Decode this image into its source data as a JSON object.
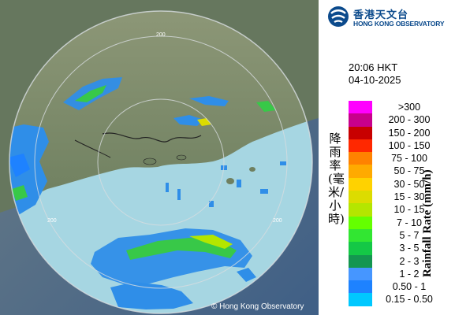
{
  "branding": {
    "name_zh": "香港天文台",
    "name_en": "HONG KONG OBSERVATORY",
    "copyright": "© Hong Kong Observatory"
  },
  "observation": {
    "time": "20:06 HKT",
    "date": "04-10-2025"
  },
  "legend": {
    "title_zh": "降雨率(毫米/小時)",
    "title_en": "Rainfall Rate (mm/h)",
    "items": [
      {
        "label": ">300",
        "color": "#ff00ff"
      },
      {
        "label": "200 - 300",
        "color": "#c8008c"
      },
      {
        "label": "150 - 200",
        "color": "#c80000"
      },
      {
        "label": "100 - 150",
        "color": "#ff2800"
      },
      {
        "label": "75 - 100",
        "color": "#ff8200"
      },
      {
        "label": "50 - 75",
        "color": "#ffaa00"
      },
      {
        "label": "30 - 50",
        "color": "#ffd200"
      },
      {
        "label": "15 - 30",
        "color": "#dcdc00"
      },
      {
        "label": "10 - 15",
        "color": "#b4e600"
      },
      {
        "label": "7 - 10",
        "color": "#64ff00"
      },
      {
        "label": "5 - 7",
        "color": "#32e632"
      },
      {
        "label": "3 - 5",
        "color": "#14c846"
      },
      {
        "label": "2 - 3",
        "color": "#149650"
      },
      {
        "label": "1 - 2",
        "color": "#4696ff"
      },
      {
        "label": "0.50 - 1",
        "color": "#1e82ff"
      },
      {
        "label": "0.15 - 0.50",
        "color": "#00c8ff"
      }
    ]
  },
  "map": {
    "range_rings": [
      "200",
      "200",
      "200"
    ],
    "colors": {
      "land": "#7a8a6a",
      "sea": "#a6d6e2",
      "outside": "#4e6b88",
      "rain_light": "#2f8ee8",
      "rain_moderate": "#38c848"
    }
  }
}
